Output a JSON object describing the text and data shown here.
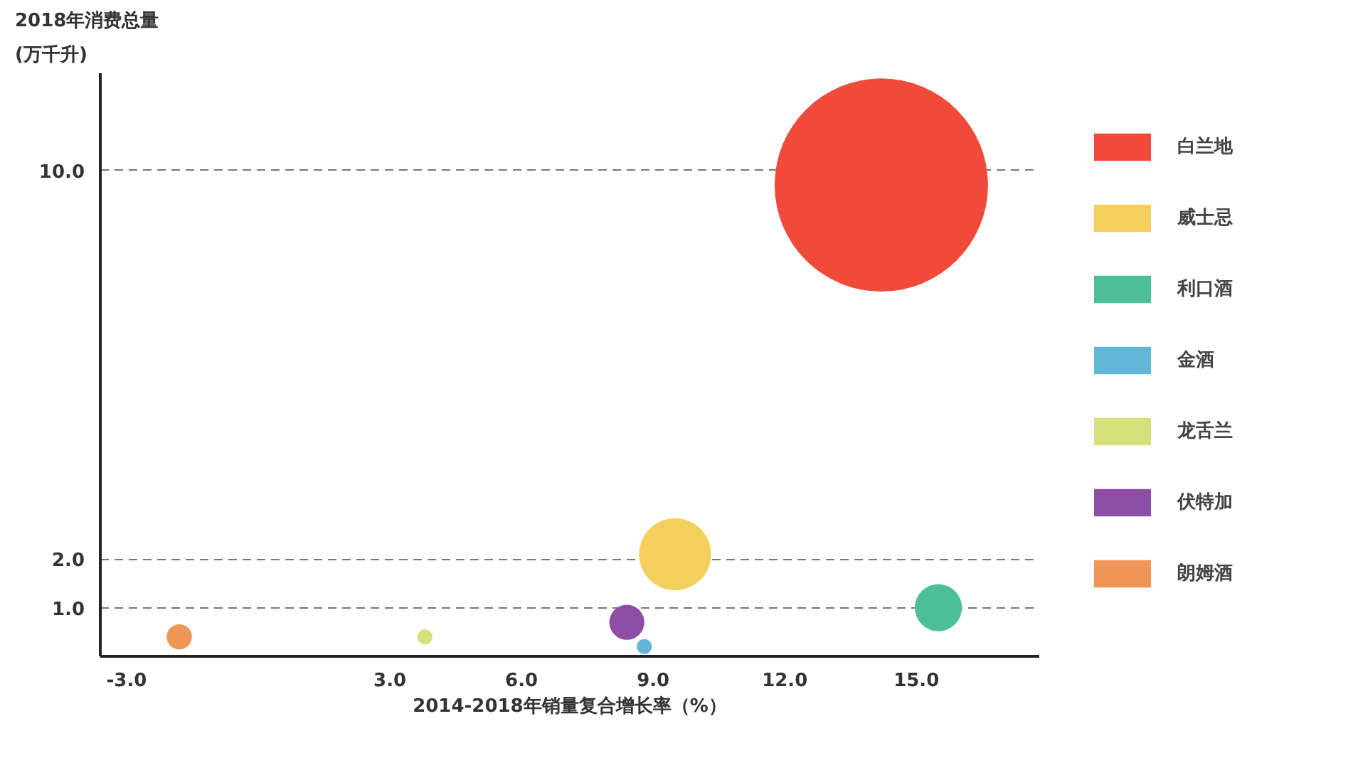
{
  "chart_data": {
    "type": "bubble",
    "ylabel": "2018年消费总量\n(万千升)",
    "xlabel": "2014-2018年销量复合增长率（%）",
    "xlim": [
      -3.6,
      17.8
    ],
    "ylim": [
      0,
      12.0
    ],
    "xticks": [
      {
        "value": -3.0,
        "label": "-3.0"
      },
      {
        "value": 3.0,
        "label": "3.0"
      },
      {
        "value": 6.0,
        "label": "6.0"
      },
      {
        "value": 9.0,
        "label": "9.0"
      },
      {
        "value": 12.0,
        "label": "12.0"
      },
      {
        "value": 15.0,
        "label": "15.0"
      }
    ],
    "yticks": [
      {
        "value": 1.0,
        "label": "1.0"
      },
      {
        "value": 2.0,
        "label": "2.0"
      },
      {
        "value": 10.0,
        "label": "10.0"
      }
    ],
    "grid": "y",
    "legend": "right",
    "series": [
      {
        "name": "白兰地",
        "color": "#f04b3a",
        "x": [
          14.2
        ],
        "values": [
          9.7
        ],
        "sizes": [
          1
        ]
      },
      {
        "name": "威士忌",
        "color": "#f4cf5b",
        "x": [
          9.5
        ],
        "values": [
          2.1
        ],
        "sizes": [
          0.114
        ]
      },
      {
        "name": "利口酒",
        "color": "#4dbf98",
        "x": [
          15.5
        ],
        "values": [
          1.0
        ],
        "sizes": [
          0.049
        ]
      },
      {
        "name": "金酒",
        "color": "#62b6d8",
        "x": [
          8.8
        ],
        "values": [
          0.2
        ],
        "sizes": [
          0.005
        ]
      },
      {
        "name": "龙舌兰",
        "color": "#d6e07c",
        "x": [
          3.8
        ],
        "values": [
          0.4
        ],
        "sizes": [
          0.005
        ]
      },
      {
        "name": "伏特加",
        "color": "#8e4ea7",
        "x": [
          8.4
        ],
        "values": [
          0.7
        ],
        "sizes": [
          0.027
        ]
      },
      {
        "name": "朗姆酒",
        "color": "#ef9656",
        "x": [
          -1.8
        ],
        "values": [
          0.4
        ],
        "sizes": [
          0.014
        ]
      }
    ]
  }
}
